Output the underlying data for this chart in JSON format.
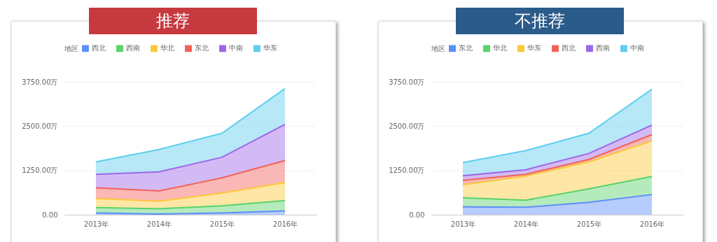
{
  "chart_data": [
    {
      "type": "area",
      "title": "推荐",
      "stacked": true,
      "legend_title": "地区",
      "legend": "top left",
      "grid": "y",
      "categories": [
        "2013年",
        "2014年",
        "2015年",
        "2016年"
      ],
      "ylim": [
        0,
        3750
      ],
      "yticks": [
        {
          "value": 0,
          "label": "0.00"
        },
        {
          "value": 1250,
          "label": "1250.00万"
        },
        {
          "value": 2500,
          "label": "2500.00万"
        },
        {
          "value": 3750,
          "label": "3750.00万"
        }
      ],
      "series": [
        {
          "name": "西北",
          "color": "#5b8ff9",
          "values": [
            50,
            20,
            50,
            110
          ]
        },
        {
          "name": "西南",
          "color": "#5ad26a",
          "values": [
            150,
            150,
            200,
            290
          ]
        },
        {
          "name": "华北",
          "color": "#fdc73a",
          "values": [
            260,
            210,
            360,
            510
          ]
        },
        {
          "name": "东北",
          "color": "#f2625a",
          "values": [
            300,
            290,
            430,
            620
          ]
        },
        {
          "name": "中南",
          "color": "#9d66e8",
          "values": [
            380,
            540,
            580,
            1020
          ]
        },
        {
          "name": "华东",
          "color": "#5fcdef",
          "values": [
            350,
            630,
            680,
            1010
          ]
        }
      ]
    },
    {
      "type": "area",
      "title": "不推荐",
      "stacked": true,
      "legend_title": "地区",
      "legend": "top left",
      "grid": "y",
      "categories": [
        "2013年",
        "2014年",
        "2015年",
        "2016年"
      ],
      "ylim": [
        0,
        3750
      ],
      "yticks": [
        {
          "value": 0,
          "label": "0.00"
        },
        {
          "value": 1250,
          "label": "1250.00万"
        },
        {
          "value": 2500,
          "label": "2500.00万"
        },
        {
          "value": 3750,
          "label": "3750.00万"
        }
      ],
      "series": [
        {
          "name": "东北",
          "color": "#5b8ff9",
          "values": [
            220,
            210,
            350,
            570
          ]
        },
        {
          "name": "华北",
          "color": "#5ad26a",
          "values": [
            260,
            200,
            380,
            510
          ]
        },
        {
          "name": "华东",
          "color": "#fdc73a",
          "values": [
            370,
            680,
            760,
            1000
          ]
        },
        {
          "name": "西北",
          "color": "#f2625a",
          "values": [
            120,
            50,
            70,
            180
          ]
        },
        {
          "name": "西南",
          "color": "#9d66e8",
          "values": [
            130,
            130,
            170,
            270
          ]
        },
        {
          "name": "中南",
          "color": "#5fcdef",
          "values": [
            370,
            540,
            570,
            1010
          ]
        }
      ]
    }
  ]
}
